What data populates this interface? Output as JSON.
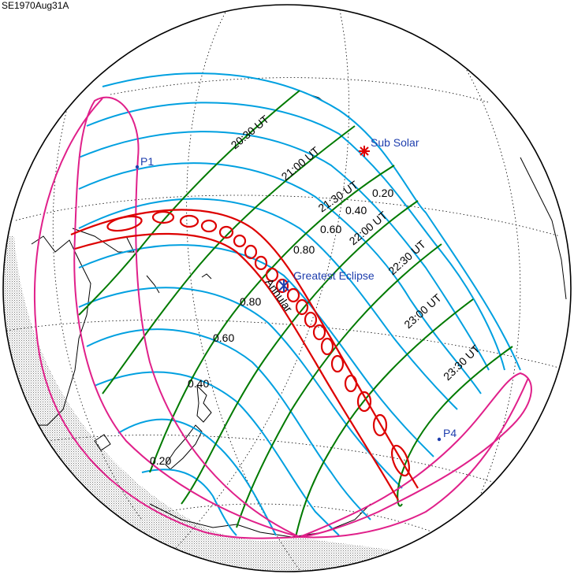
{
  "title": "SE1970Aug31A",
  "points": {
    "p1": "P1",
    "p4": "P4",
    "sub_solar": "Sub Solar",
    "greatest_eclipse": "Greatest Eclipse"
  },
  "path_label": "Annular",
  "time_labels": [
    "20:30 UT",
    "21:00 UT",
    "21:30 UT",
    "22:00 UT",
    "22:30 UT",
    "23:00 UT",
    "23:30 UT"
  ],
  "magnitude_labels": [
    "0.20",
    "0.40",
    "0.60",
    "0.80",
    "0.80",
    "0.60",
    "0.40",
    "0.20"
  ],
  "colors": {
    "globe_outline": "#000000",
    "graticule": "#000000",
    "coastline": "#000000",
    "magnitude_lines": "#00a0e0",
    "time_lines": "#007a00",
    "penumbra_limits": "#e0208a",
    "central_path": "#dd0000",
    "sub_solar_marker": "#dd0000",
    "point_markers": "#1f3fae",
    "night_shading": "#b8b8b8"
  }
}
